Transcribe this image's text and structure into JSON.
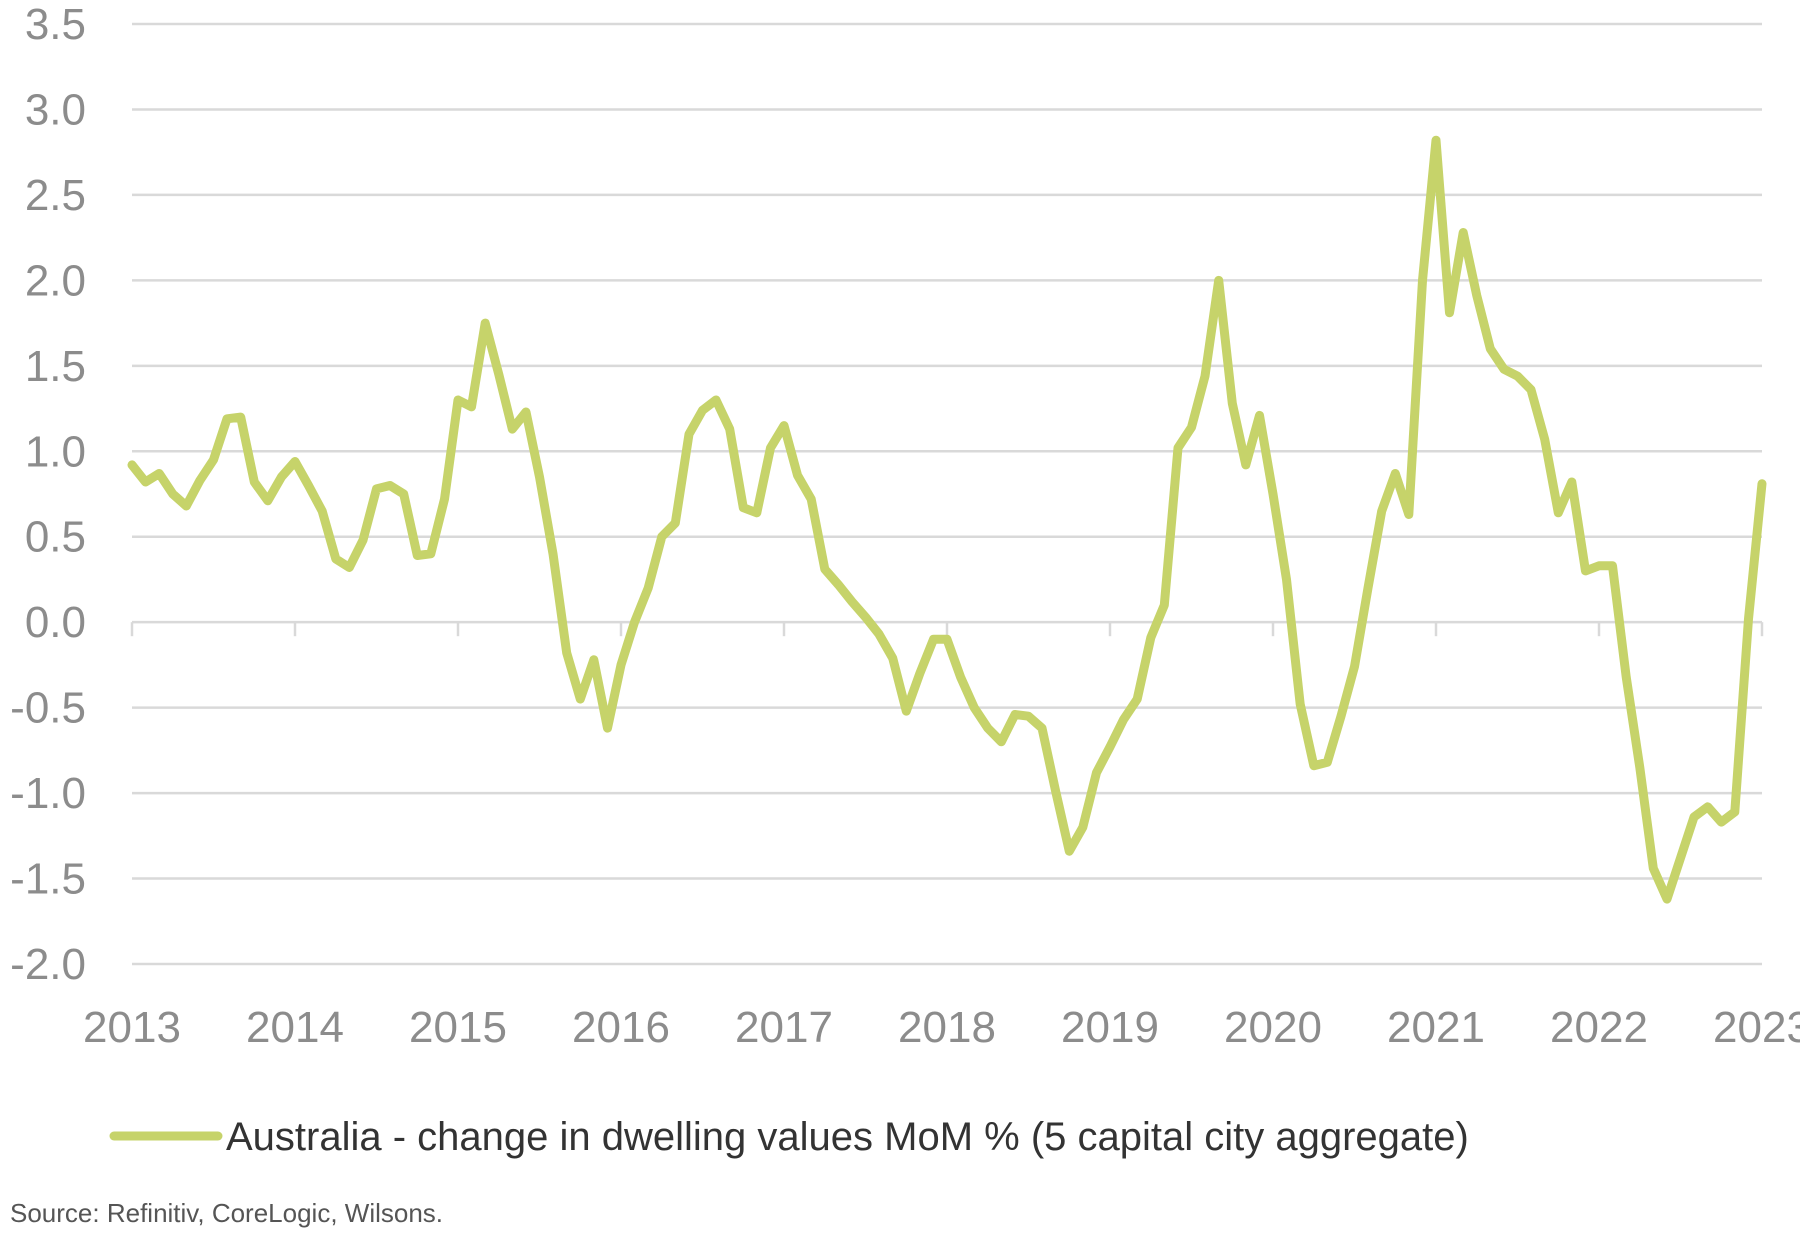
{
  "chart_data": {
    "type": "line",
    "title": "",
    "xlabel": "",
    "ylabel": "",
    "ylim": [
      -2.0,
      3.5
    ],
    "y_ticks": [
      "3.5",
      "3.0",
      "2.5",
      "2.0",
      "1.5",
      "1.0",
      "0.5",
      "0.0",
      "-0.5",
      "-1.0",
      "-1.5",
      "-2.0"
    ],
    "x_ticks": [
      "2013",
      "2014",
      "2015",
      "2016",
      "2017",
      "2018",
      "2019",
      "2020",
      "2021",
      "2022",
      "2023"
    ],
    "xlim": [
      2013,
      2023
    ],
    "grid": "horizontal",
    "legend_position": "bottom",
    "colors": {
      "series": "#c6d36a",
      "grid": "#d9d9d9",
      "tick_text": "#8c8c8c"
    },
    "series": [
      {
        "name": "Australia - change in dwelling values MoM % (5 capital city aggregate)",
        "x": [
          2013.0,
          2013.083,
          2013.167,
          2013.25,
          2013.333,
          2013.417,
          2013.5,
          2013.583,
          2013.667,
          2013.75,
          2013.833,
          2013.917,
          2014.0,
          2014.083,
          2014.167,
          2014.25,
          2014.333,
          2014.417,
          2014.5,
          2014.583,
          2014.667,
          2014.75,
          2014.833,
          2014.917,
          2015.0,
          2015.083,
          2015.167,
          2015.25,
          2015.333,
          2015.417,
          2015.5,
          2015.583,
          2015.667,
          2015.75,
          2015.833,
          2015.917,
          2016.0,
          2016.083,
          2016.167,
          2016.25,
          2016.333,
          2016.417,
          2016.5,
          2016.583,
          2016.667,
          2016.75,
          2016.833,
          2016.917,
          2017.0,
          2017.083,
          2017.167,
          2017.25,
          2017.333,
          2017.417,
          2017.5,
          2017.583,
          2017.667,
          2017.75,
          2017.833,
          2017.917,
          2018.0,
          2018.083,
          2018.167,
          2018.25,
          2018.333,
          2018.417,
          2018.5,
          2018.583,
          2018.667,
          2018.75,
          2018.833,
          2018.917,
          2019.0,
          2019.083,
          2019.167,
          2019.25,
          2019.333,
          2019.417,
          2019.5,
          2019.583,
          2019.667,
          2019.75,
          2019.833,
          2019.917,
          2020.0,
          2020.083,
          2020.167,
          2020.25,
          2020.333,
          2020.417,
          2020.5,
          2020.583,
          2020.667,
          2020.75,
          2020.833,
          2020.917,
          2021.0,
          2021.083,
          2021.167,
          2021.25,
          2021.333,
          2021.417,
          2021.5,
          2021.583,
          2021.667,
          2021.75,
          2021.833,
          2021.917,
          2022.0,
          2022.083,
          2022.167,
          2022.25,
          2022.333,
          2022.417,
          2022.5,
          2022.583,
          2022.667,
          2022.75,
          2022.833,
          2022.917,
          2023.0
        ],
        "values": [
          0.92,
          0.82,
          0.87,
          0.75,
          0.68,
          0.83,
          0.95,
          1.19,
          1.2,
          0.82,
          0.71,
          0.85,
          0.94,
          0.8,
          0.65,
          0.37,
          0.32,
          0.48,
          0.78,
          0.8,
          0.75,
          0.39,
          0.4,
          0.72,
          1.3,
          1.26,
          1.75,
          1.45,
          1.13,
          1.23,
          0.85,
          0.4,
          -0.18,
          -0.45,
          -0.22,
          -0.62,
          -0.25,
          0.0,
          0.2,
          0.5,
          0.58,
          1.1,
          1.24,
          1.3,
          1.13,
          0.67,
          0.64,
          1.02,
          1.15,
          0.86,
          0.72,
          0.31,
          0.22,
          0.12,
          0.03,
          -0.07,
          -0.21,
          -0.52,
          -0.3,
          -0.1,
          -0.1,
          -0.32,
          -0.5,
          -0.62,
          -0.7,
          -0.54,
          -0.55,
          -0.62,
          -0.99,
          -1.34,
          -1.2,
          -0.88,
          -0.73,
          -0.57,
          -0.45,
          -0.09,
          0.1,
          1.02,
          1.14,
          1.44,
          2.0,
          1.28,
          0.92,
          1.21,
          0.75,
          0.25,
          -0.48,
          -0.84,
          -0.82,
          -0.55,
          -0.26,
          0.2,
          0.65,
          0.87,
          0.63,
          2.0,
          2.82,
          1.81,
          2.28,
          1.91,
          1.6,
          1.48,
          1.44,
          1.36,
          1.07,
          0.64,
          0.82,
          0.3,
          0.33,
          0.33,
          -0.32,
          -0.85,
          -1.44,
          -1.62,
          -1.38,
          -1.14,
          -1.08,
          -1.17,
          -1.11,
          0.02,
          0.81
        ]
      }
    ]
  },
  "legend": {
    "label": "Australia - change in dwelling values MoM % (5 capital city aggregate)"
  },
  "footer": {
    "source": "Source: Refinitiv, CoreLogic, Wilsons."
  }
}
